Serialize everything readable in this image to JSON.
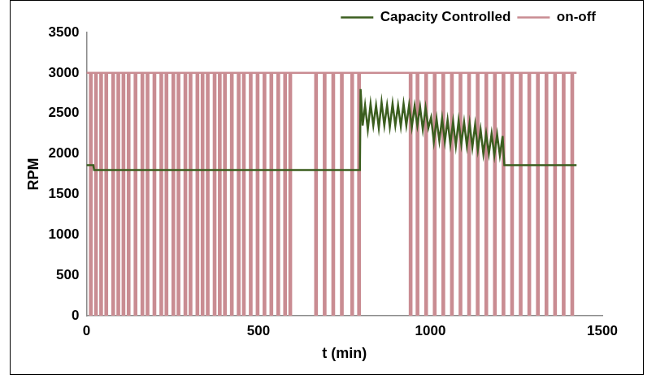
{
  "chart_data": {
    "type": "line",
    "x_label": "t (min)",
    "y_label": "RPM",
    "xlim": [
      0,
      1500
    ],
    "xticks": [
      0,
      500,
      1000,
      1500
    ],
    "ylim": [
      0,
      3500
    ],
    "yticks": [
      0,
      500,
      1000,
      1500,
      2000,
      2500,
      3000,
      3500
    ],
    "grid": false,
    "legend": "upper right",
    "series": [
      {
        "name": "Capacity Controlled",
        "color": "#3b5e1f",
        "marker": "none",
        "line_style": "solid",
        "x": [
          0,
          20,
          22,
          795,
          797,
          803,
          810,
          818,
          826,
          834,
          842,
          850,
          858,
          866,
          874,
          882,
          890,
          898,
          906,
          914,
          922,
          930,
          938,
          946,
          954,
          962,
          970,
          978,
          986,
          994,
          1002,
          1010,
          1018,
          1026,
          1034,
          1042,
          1050,
          1058,
          1066,
          1074,
          1082,
          1090,
          1098,
          1106,
          1114,
          1122,
          1130,
          1138,
          1146,
          1154,
          1162,
          1170,
          1178,
          1186,
          1194,
          1202,
          1210,
          1215,
          1425
        ],
        "values": [
          1860,
          1860,
          1800,
          1800,
          2800,
          2350,
          2600,
          2300,
          2620,
          2350,
          2600,
          2320,
          2640,
          2350,
          2600,
          2330,
          2620,
          2350,
          2600,
          2340,
          2620,
          2350,
          2600,
          2330,
          2590,
          2350,
          2580,
          2300,
          2570,
          2320,
          2450,
          2150,
          2430,
          2160,
          2440,
          2150,
          2420,
          2120,
          2400,
          2100,
          2410,
          2120,
          2390,
          2100,
          2380,
          2080,
          2360,
          2050,
          2300,
          2000,
          2250,
          2000,
          2250,
          1980,
          2240,
          1980,
          2220,
          1860,
          1860
        ]
      },
      {
        "name": "on-off",
        "color": "#c98c92",
        "marker": "none",
        "line_style": "solid",
        "x": [
          0,
          10,
          10,
          15,
          15,
          25,
          25,
          30,
          30,
          40,
          40,
          45,
          45,
          55,
          55,
          60,
          60,
          75,
          75,
          80,
          80,
          90,
          90,
          95,
          95,
          105,
          105,
          110,
          110,
          120,
          120,
          125,
          125,
          140,
          140,
          145,
          145,
          160,
          160,
          165,
          165,
          175,
          175,
          180,
          180,
          195,
          195,
          200,
          200,
          215,
          215,
          220,
          220,
          230,
          230,
          235,
          235,
          250,
          250,
          255,
          255,
          265,
          265,
          270,
          270,
          285,
          285,
          290,
          290,
          300,
          300,
          305,
          305,
          320,
          320,
          325,
          325,
          335,
          335,
          340,
          340,
          350,
          350,
          355,
          355,
          370,
          370,
          375,
          375,
          385,
          385,
          390,
          390,
          400,
          400,
          405,
          405,
          420,
          420,
          425,
          425,
          440,
          440,
          445,
          445,
          455,
          455,
          460,
          460,
          475,
          475,
          480,
          480,
          495,
          495,
          500,
          500,
          515,
          515,
          520,
          520,
          535,
          535,
          540,
          540,
          555,
          555,
          560,
          560,
          575,
          575,
          580,
          580,
          590,
          590,
          595,
          595,
          665,
          665,
          670,
          670,
          690,
          690,
          695,
          695,
          715,
          715,
          720,
          720,
          740,
          740,
          745,
          745,
          770,
          770,
          775,
          775,
          790,
          790,
          795,
          795,
          940,
          940,
          945,
          945,
          960,
          960,
          965,
          965,
          985,
          985,
          990,
          990,
          1010,
          1010,
          1015,
          1015,
          1035,
          1035,
          1040,
          1040,
          1060,
          1060,
          1065,
          1065,
          1085,
          1085,
          1090,
          1090,
          1110,
          1110,
          1115,
          1115,
          1135,
          1135,
          1140,
          1140,
          1160,
          1160,
          1165,
          1165,
          1185,
          1185,
          1190,
          1190,
          1210,
          1210,
          1215,
          1215,
          1235,
          1235,
          1240,
          1240,
          1260,
          1260,
          1265,
          1265,
          1285,
          1285,
          1290,
          1290,
          1310,
          1310,
          1315,
          1315,
          1335,
          1335,
          1340,
          1340,
          1360,
          1360,
          1365,
          1365,
          1385,
          1385,
          1390,
          1390,
          1410,
          1410,
          1415,
          1415,
          1425
        ],
        "values": [
          3000,
          3000,
          0,
          0,
          3000,
          3000,
          0,
          0,
          3000,
          3000,
          0,
          0,
          3000,
          3000,
          0,
          0,
          3000,
          3000,
          0,
          0,
          3000,
          3000,
          0,
          0,
          3000,
          3000,
          0,
          0,
          3000,
          3000,
          0,
          0,
          3000,
          3000,
          0,
          0,
          3000,
          3000,
          0,
          0,
          3000,
          3000,
          0,
          0,
          3000,
          3000,
          0,
          0,
          3000,
          3000,
          0,
          0,
          3000,
          3000,
          0,
          0,
          3000,
          3000,
          0,
          0,
          3000,
          3000,
          0,
          0,
          3000,
          3000,
          0,
          0,
          3000,
          3000,
          0,
          0,
          3000,
          3000,
          0,
          0,
          3000,
          3000,
          0,
          0,
          3000,
          3000,
          0,
          0,
          3000,
          3000,
          0,
          0,
          3000,
          3000,
          0,
          0,
          3000,
          3000,
          0,
          0,
          3000,
          3000,
          0,
          0,
          3000,
          3000,
          0,
          0,
          3000,
          3000,
          0,
          0,
          3000,
          3000,
          0,
          0,
          3000,
          3000,
          0,
          0,
          3000,
          3000,
          0,
          0,
          3000,
          3000,
          0,
          0,
          3000,
          3000,
          0,
          0,
          3000,
          3000,
          0,
          0,
          3000,
          3000,
          0,
          0,
          3000,
          3000,
          0,
          0,
          3000,
          3000,
          0,
          0,
          3000,
          3000,
          0,
          0,
          3000,
          3000,
          0,
          0,
          3000,
          3000,
          0,
          0,
          3000,
          3000,
          0,
          0,
          3000,
          3000,
          0,
          0,
          3000,
          3000,
          0,
          0,
          3000,
          3000,
          0,
          0,
          3000,
          3000,
          0,
          0,
          3000,
          3000,
          0,
          0,
          3000,
          3000,
          0,
          0,
          3000,
          3000,
          0,
          0,
          3000,
          3000,
          0,
          0,
          3000,
          3000,
          0,
          0,
          3000,
          3000,
          0,
          0,
          3000,
          3000,
          0,
          0,
          3000,
          3000,
          0,
          0,
          3000,
          3000,
          0,
          0,
          3000,
          3000,
          0,
          0,
          3000,
          3000,
          0,
          0,
          3000,
          3000,
          0,
          0,
          3000,
          3000,
          0,
          0,
          3000,
          3000,
          0,
          0,
          3000,
          3000,
          0,
          0,
          3000,
          3000,
          0,
          0,
          3000,
          3000
        ]
      }
    ]
  }
}
